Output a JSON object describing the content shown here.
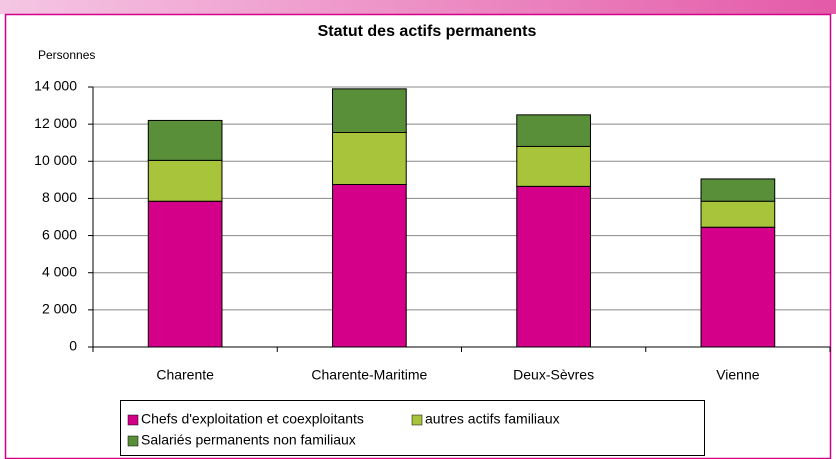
{
  "chart_data": {
    "type": "stacked_bar",
    "title": "Statut des actifs permanents",
    "y_axis_label": "Personnes",
    "categories": [
      "Charente",
      "Charente-Maritime",
      "Deux-Sèvres",
      "Vienne"
    ],
    "series": [
      {
        "name": "Chefs d'exploitation et coexploitants",
        "color": "#d4008a",
        "values": [
          7850,
          8750,
          8650,
          6450
        ]
      },
      {
        "name": "autres actifs familiaux",
        "color": "#a8c43a",
        "values": [
          2200,
          2800,
          2150,
          1400
        ]
      },
      {
        "name": "Salariés permanents non familiaux",
        "color": "#5a8f3a",
        "values": [
          2150,
          2350,
          1700,
          1200
        ]
      }
    ],
    "ylim": [
      0,
      14000
    ],
    "yticks": [
      0,
      {
        "value": 2000,
        "label": "2 000"
      },
      {
        "value": 4000,
        "label": "4 000"
      },
      {
        "value": 6000,
        "label": "6 000"
      },
      {
        "value": 8000,
        "label": "8 000"
      },
      {
        "value": 10000,
        "label": "10 000"
      },
      {
        "value": 12000,
        "label": "12 000"
      },
      {
        "value": 14000,
        "label": "14 000"
      }
    ],
    "grid": true
  }
}
